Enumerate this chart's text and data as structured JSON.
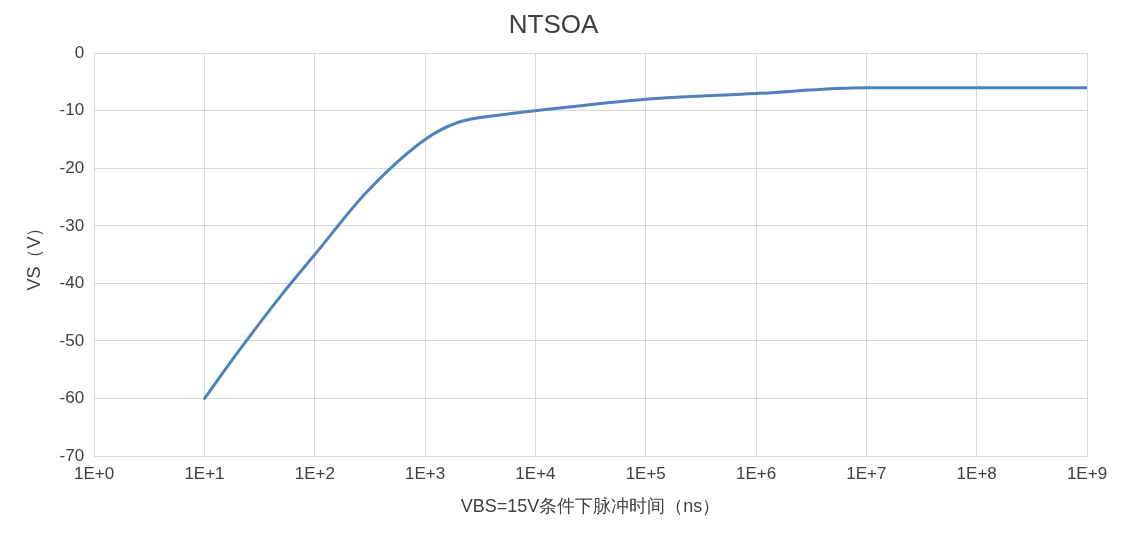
{
  "chart_data": {
    "type": "line",
    "title": "NTSOA",
    "xlabel": "VBS=15V条件下脉冲时间（ns）",
    "ylabel": "VS（V）",
    "log": "x",
    "grid": true,
    "legend": false,
    "marker": "none",
    "line_style": "solid",
    "xlim": [
      1,
      1000000000
    ],
    "ylim": [
      -70,
      0
    ],
    "xticks": [
      {
        "value": 1,
        "label": "1E+0"
      },
      {
        "value": 10,
        "label": "1E+1"
      },
      {
        "value": 100,
        "label": "1E+2"
      },
      {
        "value": 1000,
        "label": "1E+3"
      },
      {
        "value": 10000,
        "label": "1E+4"
      },
      {
        "value": 100000,
        "label": "1E+5"
      },
      {
        "value": 1000000,
        "label": "1E+6"
      },
      {
        "value": 10000000,
        "label": "1E+7"
      },
      {
        "value": 100000000,
        "label": "1E+8"
      },
      {
        "value": 1000000000,
        "label": "1E+9"
      }
    ],
    "yticks": [
      -70,
      -60,
      -50,
      -40,
      -30,
      -20,
      -10,
      0
    ],
    "series": [
      {
        "color": "#4f81bd",
        "x": [
          10,
          20,
          50,
          100,
          300,
          1000,
          2000,
          5000,
          10000,
          100000,
          1000000,
          10000000,
          100000000,
          1000000000
        ],
        "values": [
          -60,
          -52,
          -42,
          -35,
          -24,
          -15,
          -12,
          -10.7,
          -10,
          -8,
          -7,
          -6,
          -6,
          -6
        ]
      }
    ]
  }
}
